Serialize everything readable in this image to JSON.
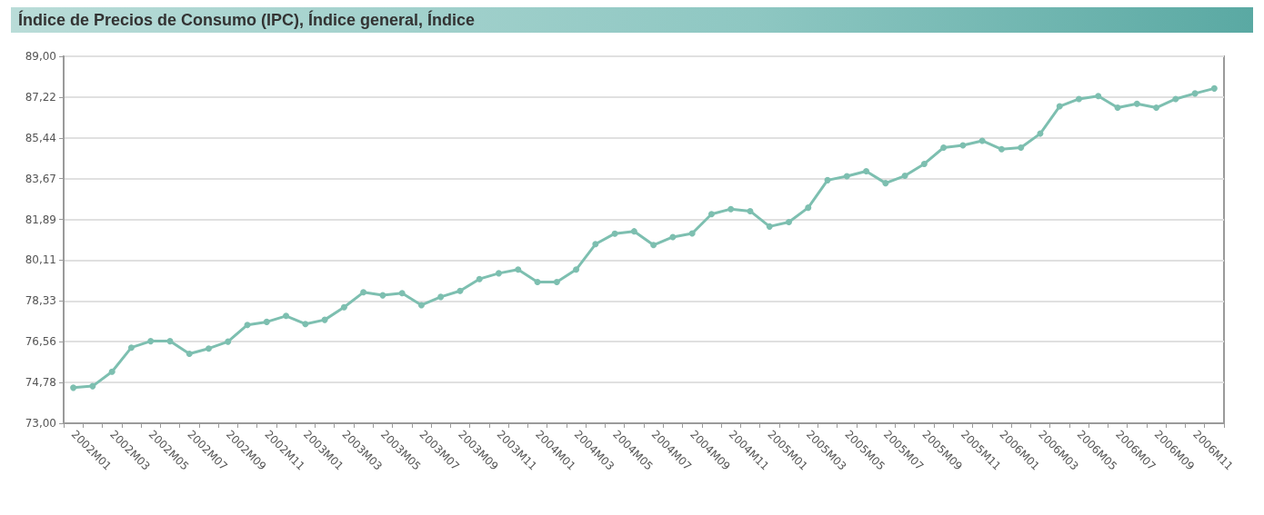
{
  "chart_data": {
    "type": "line",
    "title": "Índice de Precios de Consumo (IPC), Índice general, Índice",
    "categories": [
      "2002M01",
      null,
      "2002M03",
      null,
      "2002M05",
      null,
      "2002M07",
      null,
      "2002M09",
      null,
      "2002M11",
      null,
      "2003M01",
      null,
      "2003M03",
      null,
      "2003M05",
      null,
      "2003M07",
      null,
      "2003M09",
      null,
      "2003M11",
      null,
      "2004M01",
      null,
      "2004M03",
      null,
      "2004M05",
      null,
      "2004M07",
      null,
      "2004M09",
      null,
      "2004M11",
      null,
      "2005M01",
      null,
      "2005M03",
      null,
      "2005M05",
      null,
      "2005M07",
      null,
      "2005M09",
      null,
      "2005M11",
      null,
      "2006M01",
      null,
      "2006M03",
      null,
      "2006M05",
      null,
      "2006M07",
      null,
      "2006M09",
      null,
      "2006M11",
      null
    ],
    "series": [
      {
        "color": "#7dbfb0",
        "values": [
          74.55,
          74.62,
          75.25,
          76.3,
          76.58,
          76.58,
          76.03,
          76.26,
          76.56,
          77.29,
          77.42,
          77.68,
          77.33,
          77.51,
          78.06,
          78.71,
          78.58,
          78.67,
          78.15,
          78.51,
          78.77,
          79.29,
          79.54,
          79.7,
          79.16,
          79.16,
          79.7,
          80.81,
          81.27,
          81.37,
          80.77,
          81.12,
          81.28,
          82.12,
          82.34,
          82.25,
          81.58,
          81.77,
          82.4,
          83.6,
          83.77,
          83.99,
          83.47,
          83.79,
          84.31,
          85.02,
          85.12,
          85.32,
          84.95,
          85.02,
          85.63,
          86.82,
          87.14,
          87.27,
          86.76,
          86.93,
          86.76,
          87.14,
          87.38,
          87.6
        ]
      }
    ],
    "ylim": [
      73,
      89
    ],
    "yticks": [
      {
        "value": 73,
        "label": "73,00"
      },
      {
        "value": 74.78,
        "label": "74,78"
      },
      {
        "value": 76.56,
        "label": "76,56"
      },
      {
        "value": 78.33,
        "label": "78,33"
      },
      {
        "value": 80.11,
        "label": "80,11"
      },
      {
        "value": 81.89,
        "label": "81,89"
      },
      {
        "value": 83.67,
        "label": "83,67"
      },
      {
        "value": 85.44,
        "label": "85,44"
      },
      {
        "value": 87.22,
        "label": "87,22"
      },
      {
        "value": 89,
        "label": "89,00"
      }
    ],
    "grid": "y",
    "marker": "circle",
    "line_style": "solid"
  }
}
